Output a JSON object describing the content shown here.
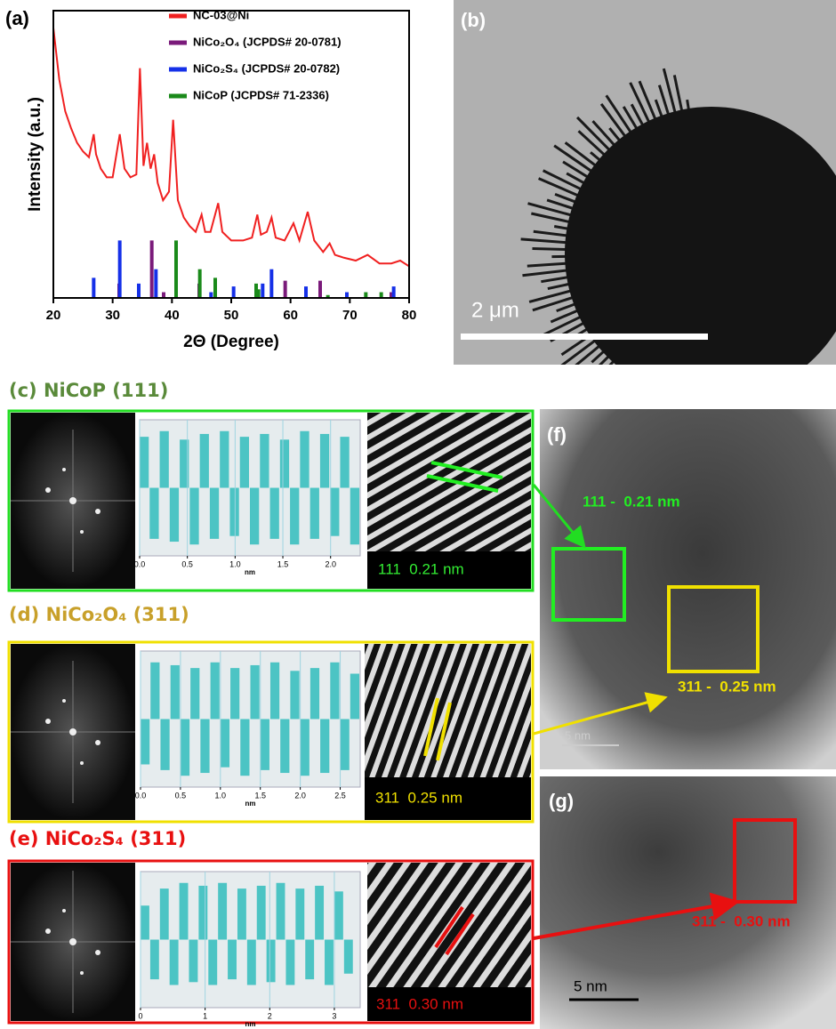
{
  "chart_data": [
    {
      "type": "line",
      "label": "(a)",
      "xlabel": "2Θ (Degree)",
      "ylabel": "Intensity (a.u.)",
      "xlim": [
        20,
        80
      ],
      "xticks": [
        20,
        30,
        40,
        50,
        60,
        70,
        80
      ],
      "ylim": [
        0,
        100
      ],
      "legend": "top",
      "series": [
        {
          "name": "NC-03@Ni",
          "color": "#f02020",
          "type": "line",
          "x": [
            20,
            21,
            22,
            23,
            24,
            25,
            26,
            26.8,
            27.2,
            28,
            29,
            30,
            31.2,
            32,
            33,
            34,
            34.6,
            35.2,
            35.8,
            36.4,
            37,
            37.6,
            38.5,
            39.5,
            40.2,
            41,
            42,
            43,
            44,
            45,
            45.6,
            46.5,
            47.8,
            48.5,
            50,
            52,
            53.5,
            54.4,
            55,
            56,
            56.8,
            57.5,
            59,
            60.5,
            61.5,
            62.9,
            64,
            65.5,
            66.6,
            67.5,
            69,
            71,
            73,
            75,
            77,
            78.5,
            80
          ],
          "values": [
            94,
            76,
            65,
            59,
            54,
            51,
            49,
            57,
            50,
            45,
            42,
            42,
            57,
            45,
            42,
            43,
            80,
            46,
            54,
            45,
            50,
            40,
            34,
            37,
            62,
            34,
            28,
            25,
            23,
            29,
            23,
            23,
            33,
            23,
            20,
            20,
            21,
            29,
            22,
            23,
            28,
            21,
            20,
            26,
            20,
            30,
            20,
            16,
            19,
            15,
            14,
            13,
            15,
            12,
            12,
            13,
            11
          ]
        },
        {
          "name": "NiCo₂O₄ (JCPDS# 20-0781)",
          "color": "#7a1a7a",
          "type": "stick",
          "x": [
            31.1,
            36.6,
            38.6,
            44.6,
            59.1,
            65.0,
            77.0
          ],
          "values": [
            5,
            20,
            2,
            5,
            6,
            6,
            2
          ]
        },
        {
          "name": "NiCo₂S₄ (JCPDS# 20-0782)",
          "color": "#1530e8",
          "type": "stick",
          "x": [
            26.8,
            31.2,
            34.4,
            37.3,
            46.6,
            50.4,
            55.3,
            56.8,
            62.6,
            69.5,
            77.4
          ],
          "values": [
            7,
            20,
            5,
            10,
            2,
            4,
            5,
            10,
            4,
            2,
            4
          ]
        },
        {
          "name": "NiCoP (JCPDS# 71-2336)",
          "color": "#1a8a1a",
          "type": "stick",
          "x": [
            40.7,
            44.7,
            47.3,
            54.2,
            54.6,
            66.3,
            72.7,
            75.3
          ],
          "values": [
            20,
            10,
            7,
            5,
            3,
            1,
            2,
            2
          ]
        }
      ]
    },
    {
      "type": "histogram",
      "xlabel": "nm",
      "color": "#4cc4c4",
      "grid": true,
      "xlim": [
        0,
        2.31
      ],
      "ylim": [
        -1.2,
        1.2
      ],
      "xticks": [
        {
          "value": 0,
          "label": "0.0"
        },
        0.5,
        {
          "value": 1,
          "label": "1.0"
        },
        1.5,
        {
          "value": 2,
          "label": "2.0"
        }
      ],
      "bins": [
        0,
        0.105,
        0.21,
        0.315,
        0.42,
        0.525,
        0.63,
        0.735,
        0.84,
        0.945,
        1.05,
        1.155,
        1.26,
        1.365,
        1.47,
        1.575,
        1.68,
        1.785,
        1.89,
        1.995,
        2.1,
        2.205,
        2.31
      ],
      "values": [
        0.9,
        -0.9,
        1,
        -0.95,
        0.85,
        -1,
        0.95,
        -0.9,
        1,
        -0.85,
        0.9,
        -1,
        0.95,
        -0.9,
        0.85,
        -1,
        1,
        -0.9,
        0.95,
        -0.85,
        0.9,
        -1
      ]
    },
    {
      "type": "histogram",
      "xlabel": "nm",
      "color": "#4cc4c4",
      "grid": true,
      "xlim": [
        0,
        2.75
      ],
      "ylim": [
        -1.2,
        1.2
      ],
      "xticks": [
        {
          "value": 0,
          "label": "0.0"
        },
        0.5,
        {
          "value": 1,
          "label": "1.0"
        },
        1.5,
        {
          "value": 2,
          "label": "2.0"
        },
        2.5
      ],
      "bins": [
        0,
        0.125,
        0.25,
        0.375,
        0.5,
        0.625,
        0.75,
        0.875,
        1,
        1.125,
        1.25,
        1.375,
        1.5,
        1.625,
        1.75,
        1.875,
        2,
        2.125,
        2.25,
        2.375,
        2.5,
        2.625,
        2.75
      ],
      "values": [
        -0.8,
        1,
        -0.9,
        0.95,
        -1,
        0.9,
        -0.95,
        1,
        -0.85,
        0.9,
        -1,
        0.95,
        -0.9,
        1,
        -0.95,
        0.85,
        -1,
        0.9,
        -0.95,
        1,
        -0.9,
        0.8
      ]
    },
    {
      "type": "histogram",
      "xlabel": "nm",
      "color": "#4cc4c4",
      "grid": true,
      "xlim": [
        0,
        3.4
      ],
      "ylim": [
        -1.2,
        1.2
      ],
      "xticks": [
        0,
        1,
        2,
        3
      ],
      "bins": [
        0,
        0.15,
        0.3,
        0.45,
        0.6,
        0.75,
        0.9,
        1.05,
        1.2,
        1.35,
        1.5,
        1.65,
        1.8,
        1.95,
        2.1,
        2.25,
        2.4,
        2.55,
        2.7,
        2.85,
        3,
        3.15,
        3.3
      ],
      "values": [
        0.6,
        -0.7,
        0.9,
        -0.8,
        1,
        -0.75,
        0.95,
        -0.8,
        1,
        -0.7,
        0.9,
        -0.8,
        0.95,
        -0.75,
        1,
        -0.8,
        0.9,
        -0.7,
        0.95,
        -0.8,
        0.85,
        -0.6
      ]
    }
  ],
  "panels": {
    "b": {
      "label": "(b)",
      "scale_bar": "2 μm"
    },
    "c": {
      "heading": "(c) NiCoP (111)",
      "fringe_label": "111  0.21 nm"
    },
    "d": {
      "heading": "(d) NiCo₂O₄ (311)",
      "fringe_label": "311  0.25 nm"
    },
    "e": {
      "heading": "(e) NiCo₂S₄ (311)",
      "fringe_label": "311  0.30 nm"
    },
    "f": {
      "label": "(f)",
      "annotations": [
        "111 -  0.21 nm",
        "311 -  0.25 nm"
      ],
      "scale_bar": "5 nm"
    },
    "g": {
      "label": "(g)",
      "annotation": "311 -  0.30 nm",
      "scale_bar": "5 nm"
    }
  }
}
